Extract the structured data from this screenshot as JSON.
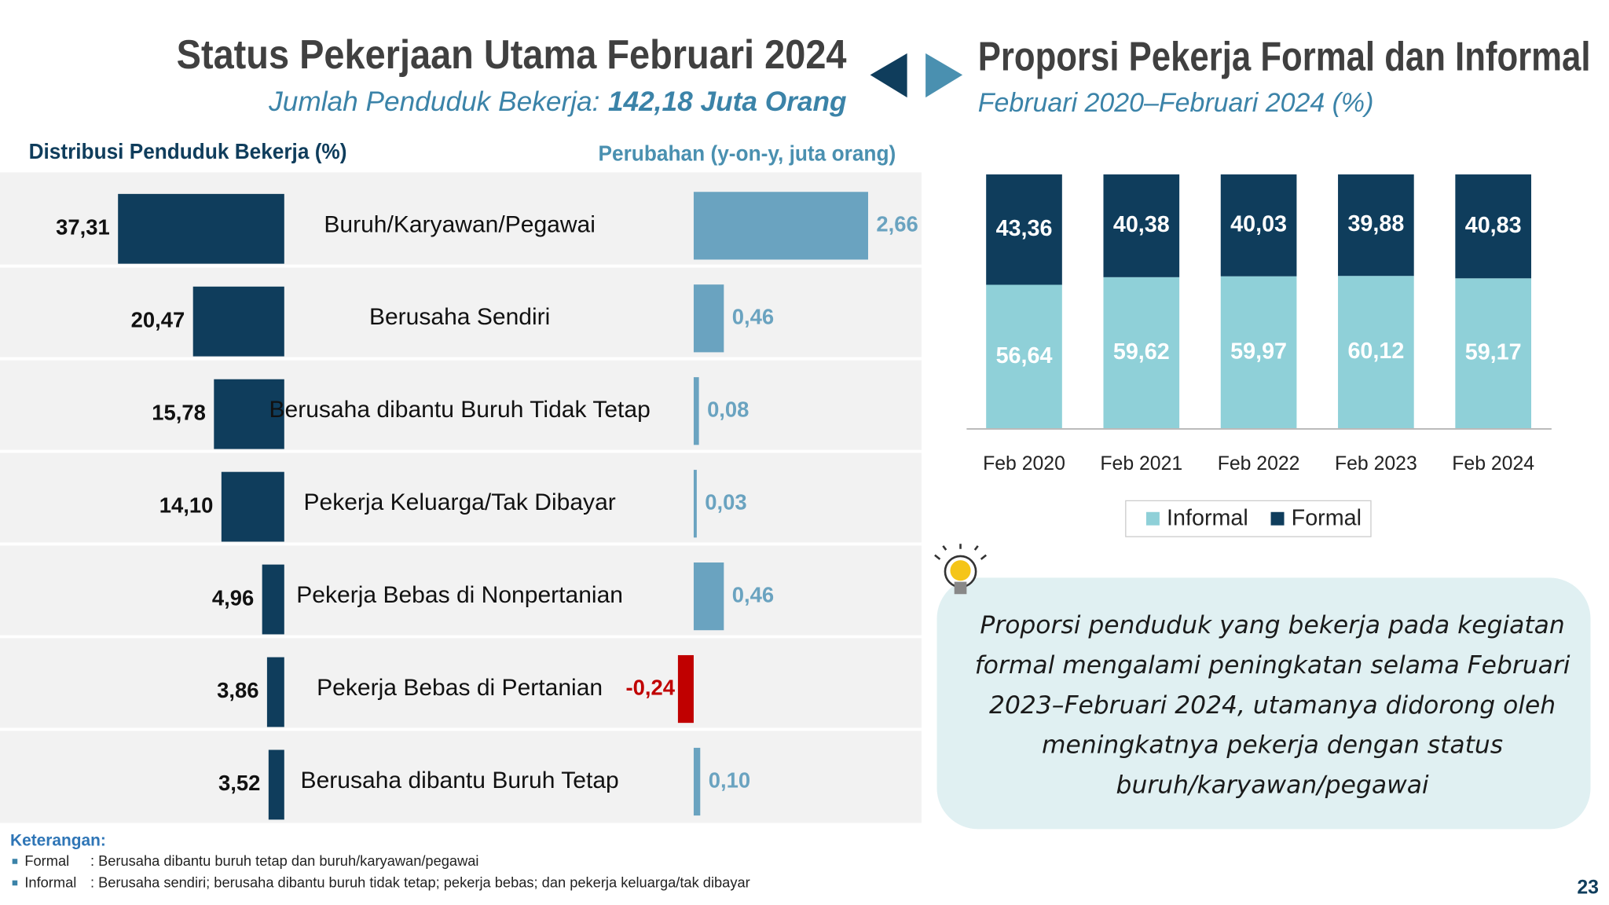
{
  "header": {
    "title": "Status Pekerjaan Utama Februari 2024",
    "subtitle_label": "Jumlah Penduduk Bekerja:",
    "subtitle_value": "142,18 Juta Orang"
  },
  "chart_data": [
    {
      "type": "hbar",
      "title": "Distribusi Penduduk Bekerja (%)",
      "categories": [
        "Buruh/Karyawan/Pegawai",
        "Berusaha Sendiri",
        "Berusaha dibantu Buruh Tidak Tetap",
        "Pekerja Keluarga/Tak Dibayar",
        "Pekerja Bebas di Nonpertanian",
        "Pekerja Bebas di Pertanian",
        "Berusaha dibantu Buruh Tetap"
      ],
      "values": [
        37.31,
        20.47,
        15.78,
        14.1,
        4.96,
        3.86,
        3.52
      ],
      "value_labels": [
        "37,31",
        "20,47",
        "15,78",
        "14,10",
        "4,96",
        "3,86",
        "3,52"
      ],
      "color": "#0f3d5c"
    },
    {
      "type": "diverging",
      "title": "Perubahan (y-on-y, juta orang)",
      "values": [
        2.66,
        0.46,
        0.08,
        0.03,
        0.46,
        -0.24,
        0.1
      ],
      "value_labels": [
        "2,66",
        "0,46",
        "0,08",
        "0,03",
        "0,46",
        "-0,24",
        "0,10"
      ],
      "color": "#6aa3c0",
      "negative_color": "#c00000"
    },
    {
      "type": "stacked",
      "title": "Proporsi Pekerja Formal dan Informal",
      "subtitle": "Februari 2020–Februari 2024 (%)",
      "categories": [
        "Feb 2020",
        "Feb 2021",
        "Feb 2022",
        "Feb 2023",
        "Feb 2024"
      ],
      "series": [
        {
          "name": "Informal",
          "color": "#8fd0d8",
          "values": [
            56.64,
            59.62,
            59.97,
            60.12,
            59.17
          ],
          "value_labels": [
            "56,64",
            "59,62",
            "59,97",
            "60,12",
            "59,17"
          ]
        },
        {
          "name": "Formal",
          "color": "#0f3d5c",
          "values": [
            43.36,
            40.38,
            40.03,
            39.88,
            40.83
          ],
          "value_labels": [
            "43,36",
            "40,38",
            "40,03",
            "39,88",
            "40,83"
          ]
        }
      ],
      "ylim": [
        0,
        100
      ],
      "legend": "bottom"
    }
  ],
  "callout": "Proporsi penduduk yang bekerja pada kegiatan formal mengalami peningkatan selama Februari 2023–Februari 2024, utamanya didorong oleh meningkatnya pekerja dengan status buruh/karyawan/pegawai",
  "notes": {
    "title": "Keterangan:",
    "items": [
      {
        "label": "Formal",
        "text": ": Berusaha dibantu buruh tetap dan buruh/karyawan/pegawai"
      },
      {
        "label": "Informal",
        "text": ": Berusaha sendiri; berusaha dibantu buruh tidak tetap; pekerja bebas; dan pekerja keluarga/tak dibayar"
      }
    ]
  },
  "page_number": "23"
}
